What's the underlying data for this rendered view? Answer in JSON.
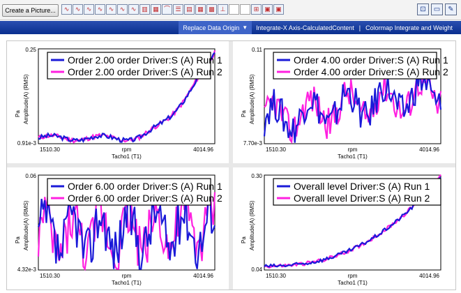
{
  "toolbar": {
    "create_label": "Create a Picture...",
    "icons": [
      "chart-icon",
      "chart-icon",
      "chart-icon",
      "chart-icon",
      "chart-icon",
      "chart-icon",
      "chart-icon",
      "bar-chart-icon",
      "map-icon",
      "curve-icon",
      "list-icon",
      "tag-icon",
      "table-icon",
      "grid-icon",
      "axis-icon",
      "blank-icon",
      "blank-icon",
      "zoom-icon",
      "picture-icon",
      "picture-icon"
    ],
    "right_icons": [
      "panel-icon",
      "document-icon",
      "edit-icon"
    ]
  },
  "tabs": [
    {
      "label": "Replace Data Origin",
      "active": true,
      "caret": "▼"
    },
    {
      "label": "Integrate-X Axis-CalculatedContent",
      "active": false
    },
    {
      "label": "Colormap Integrate and Weight",
      "active": false
    }
  ],
  "tab_separator": "|",
  "colors": {
    "run1": "#1a1ad8",
    "run2": "#ff20e0",
    "tabbar": "#0a2f8f"
  },
  "charts": [
    {
      "y_top": "0.25",
      "y_bottom": "0.91e-3",
      "x_left": "1510.30",
      "x_right": "4014.96",
      "x_unit": "rpm",
      "x_name": "Tacho1 (T1)",
      "y_unit": "Pa",
      "y_name": "Amplitude(A) (RMS)",
      "legend": [
        "Order 2.00 order Driver:S (A) Run 1",
        "Order 2.00 order Driver:S (A) Run 2"
      ]
    },
    {
      "y_top": "0.11",
      "y_bottom": "7.70e-3",
      "x_left": "1510.30",
      "x_right": "4014.96",
      "x_unit": "rpm",
      "x_name": "Tacho1 (T1)",
      "y_unit": "Pa",
      "y_name": "Amplitude(A) (RMS)",
      "legend": [
        "Order 4.00 order Driver:S (A) Run 1",
        "Order 4.00 order Driver:S (A) Run 2"
      ]
    },
    {
      "y_top": "0.06",
      "y_bottom": "4.32e-3",
      "x_left": "1510.30",
      "x_right": "4014.96",
      "x_unit": "rpm",
      "x_name": "Tacho1 (T1)",
      "y_unit": "Pa",
      "y_name": "Amplitude(A) (RMS)",
      "legend": [
        "Order 6.00 order Driver:S (A) Run 1",
        "Order 6.00 order Driver:S (A) Run 2"
      ]
    },
    {
      "y_top": "0.30",
      "y_bottom": "0.04",
      "x_left": "1510.30",
      "x_right": "4014.96",
      "x_unit": "rpm",
      "x_name": "Tacho1 (T1)",
      "y_unit": "Pa",
      "y_name": "Amplitude(A) (RMS)",
      "legend": [
        "Overall level Driver:S (A) Run 1",
        "Overall level Driver:S (A) Run 2"
      ]
    }
  ]
}
